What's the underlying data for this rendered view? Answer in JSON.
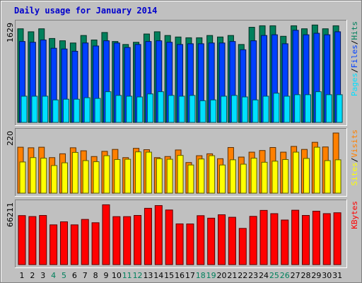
{
  "chart_data": {
    "type": "bar",
    "title": "Daily usage for January 2014",
    "categories": [
      "1",
      "2",
      "3",
      "4",
      "5",
      "6",
      "7",
      "8",
      "9",
      "10",
      "11",
      "12",
      "13",
      "14",
      "15",
      "16",
      "17",
      "18",
      "19",
      "20",
      "21",
      "22",
      "23",
      "24",
      "25",
      "26",
      "27",
      "28",
      "29",
      "30",
      "31"
    ],
    "weekend_days": [
      "4",
      "5",
      "11",
      "12",
      "18",
      "19",
      "25",
      "26"
    ],
    "panels": [
      {
        "name": "hits",
        "max_label": "1629",
        "ymax": 1629,
        "side_labels": [
          "Pages",
          "/",
          "Files",
          "/",
          "Hits"
        ],
        "series": [
          {
            "name": "Hits",
            "color": "#00805c",
            "values": [
              1562,
              1512,
              1562,
              1400,
              1362,
              1325,
              1450,
              1375,
              1500,
              1350,
              1300,
              1337,
              1475,
              1512,
              1450,
              1425,
              1412,
              1412,
              1450,
              1425,
              1450,
              1300,
              1587,
              1612,
              1612,
              1437,
              1612,
              1562,
              1625,
              1562,
              1612
            ]
          },
          {
            "name": "Files",
            "color": "#0040ff",
            "values": [
              1350,
              1337,
              1375,
              1237,
              1225,
              1187,
              1325,
              1275,
              1362,
              1325,
              1250,
              1300,
              1350,
              1362,
              1337,
              1300,
              1312,
              1312,
              1325,
              1325,
              1350,
              1212,
              1362,
              1450,
              1462,
              1312,
              1537,
              1462,
              1487,
              1462,
              1512
            ]
          },
          {
            "name": "Pages",
            "color": "#00e0ff",
            "values": [
              437,
              437,
              437,
              375,
              387,
              387,
              412,
              400,
              512,
              450,
              437,
              425,
              475,
              512,
              450,
              437,
              450,
              362,
              375,
              437,
              450,
              425,
              375,
              437,
              487,
              437,
              462,
              462,
              512,
              462,
              462
            ]
          }
        ]
      },
      {
        "name": "visits",
        "max_label": "220",
        "ymax": 220,
        "side_labels": [
          "Sites",
          "/",
          "Visits"
        ],
        "series": [
          {
            "name": "Visits",
            "color": "#ff8000",
            "values": [
              168,
              166,
              168,
              130,
              144,
              166,
              155,
              134,
              153,
              160,
              130,
              164,
              159,
              130,
              134,
              158,
              112,
              137,
              144,
              126,
              167,
              132,
              150,
              156,
              167,
              150,
              171,
              160,
              186,
              169,
              220
            ]
          },
          {
            "name": "Sites",
            "color": "#ffff00",
            "values": [
              114,
              130,
              128,
              101,
              111,
              149,
              119,
              115,
              137,
              123,
              124,
              151,
              150,
              126,
              124,
              138,
              103,
              125,
              137,
              103,
              122,
              106,
              128,
              113,
              117,
              123,
              150,
              127,
              168,
              119,
              122
            ]
          }
        ]
      },
      {
        "name": "kbytes",
        "max_label": "66211",
        "ymax": 66211,
        "side_labels": [
          "KBytes"
        ],
        "series": [
          {
            "name": "KBytes",
            "color": "#ff0000",
            "values": [
              53972,
              52928,
              54105,
              43775,
              47125,
              43775,
              49750,
              46119,
              65871,
              52830,
              52829,
              54144,
              62009,
              65002,
              60152,
              44850,
              44780,
              53902,
              51140,
              54883,
              52129,
              39880,
              53129,
              59702,
              56119,
              49100,
              59883,
              54144,
              58830,
              56133,
              57106
            ]
          }
        ]
      }
    ]
  }
}
